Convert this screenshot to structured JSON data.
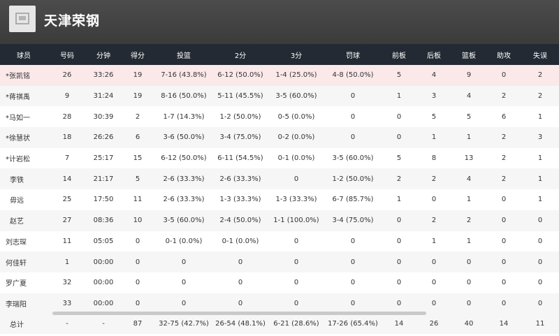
{
  "team": {
    "name": "天津荣钢",
    "logo_icon": "team-logo-icon"
  },
  "colors": {
    "header_bg": "#444444",
    "table_header_bg": "#232a33",
    "highlight_row": "#fbe9ea"
  },
  "columns": [
    "球员",
    "号码",
    "分钟",
    "得分",
    "投篮",
    "2分",
    "3分",
    "罚球",
    "前板",
    "后板",
    "篮板",
    "助攻",
    "失误"
  ],
  "rows": [
    [
      "*张凯铭",
      "26",
      "33:26",
      "19",
      "7-16 (43.8%)",
      "6-12 (50.0%)",
      "1-4 (25.0%)",
      "4-8 (50.0%)",
      "5",
      "4",
      "9",
      "0",
      "2"
    ],
    [
      "*蒋祺禹",
      "9",
      "31:24",
      "19",
      "8-16 (50.0%)",
      "5-11 (45.5%)",
      "3-5 (60.0%)",
      "0",
      "1",
      "3",
      "4",
      "2",
      "2"
    ],
    [
      "*马如一",
      "28",
      "30:39",
      "2",
      "1-7 (14.3%)",
      "1-2 (50.0%)",
      "0-5 (0.0%)",
      "0",
      "0",
      "5",
      "5",
      "6",
      "1"
    ],
    [
      "*徐慧状",
      "18",
      "26:26",
      "6",
      "3-6 (50.0%)",
      "3-4 (75.0%)",
      "0-2 (0.0%)",
      "0",
      "0",
      "1",
      "1",
      "2",
      "3"
    ],
    [
      "*计岩松",
      "7",
      "25:17",
      "15",
      "6-12 (50.0%)",
      "6-11 (54.5%)",
      "0-1 (0.0%)",
      "3-5 (60.0%)",
      "5",
      "8",
      "13",
      "2",
      "1"
    ],
    [
      "李铁",
      "14",
      "21:17",
      "5",
      "2-6 (33.3%)",
      "2-6 (33.3%)",
      "0",
      "1-2 (50.0%)",
      "2",
      "2",
      "4",
      "2",
      "1"
    ],
    [
      "毋远",
      "25",
      "17:50",
      "11",
      "2-6 (33.3%)",
      "1-3 (33.3%)",
      "1-3 (33.3%)",
      "6-7 (85.7%)",
      "1",
      "0",
      "1",
      "0",
      "1"
    ],
    [
      "赵艺",
      "27",
      "08:36",
      "10",
      "3-5 (60.0%)",
      "2-4 (50.0%)",
      "1-1 (100.0%)",
      "3-4 (75.0%)",
      "0",
      "2",
      "2",
      "0",
      "0"
    ],
    [
      "刘志琛",
      "11",
      "05:05",
      "0",
      "0-1 (0.0%)",
      "0-1 (0.0%)",
      "0",
      "0",
      "0",
      "1",
      "1",
      "0",
      "0"
    ],
    [
      "何佳轩",
      "1",
      "00:00",
      "0",
      "0",
      "0",
      "0",
      "0",
      "0",
      "0",
      "0",
      "0",
      "0"
    ],
    [
      "罗广夏",
      "32",
      "00:00",
      "0",
      "0",
      "0",
      "0",
      "0",
      "0",
      "0",
      "0",
      "0",
      "0"
    ],
    [
      "李瑞阳",
      "33",
      "00:00",
      "0",
      "0",
      "0",
      "0",
      "0",
      "0",
      "0",
      "0",
      "0",
      "0"
    ]
  ],
  "totals": [
    "总计",
    "-",
    "-",
    "87",
    "32-75 (42.7%)",
    "26-54 (48.1%)",
    "6-21 (28.6%)",
    "17-26 (65.4%)",
    "14",
    "26",
    "40",
    "14",
    "11"
  ]
}
